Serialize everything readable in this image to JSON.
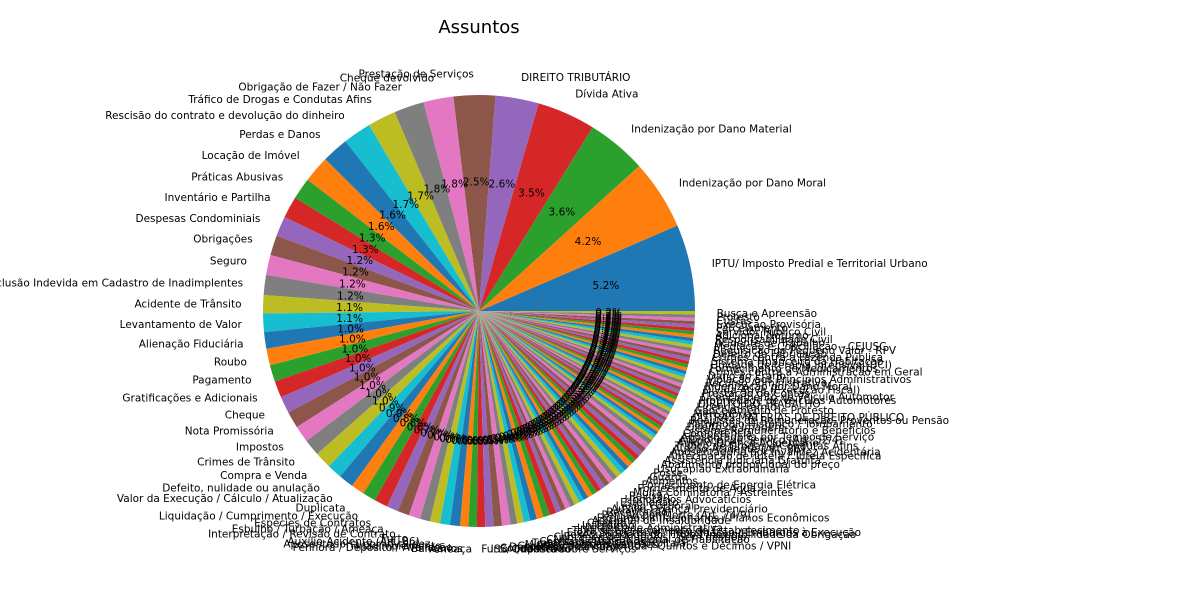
{
  "chart_data": {
    "type": "pie",
    "title": "Assuntos",
    "start_angle_deg": 0,
    "direction": "counterclockwise",
    "palette": [
      "#1f77b4",
      "#ff7f0e",
      "#2ca02c",
      "#d62728",
      "#9467bd",
      "#8c564b",
      "#e377c2",
      "#7f7f7f",
      "#bcbd22",
      "#17becf"
    ],
    "slices": [
      {
        "label": "IPTU/ Imposto Predial e Territorial Urbano",
        "value": 5.2
      },
      {
        "label": "Indenização por Dano Moral",
        "value": 4.2
      },
      {
        "label": "Indenização por Dano Material",
        "value": 3.6
      },
      {
        "label": "Dívida Ativa",
        "value": 3.5
      },
      {
        "label": "DIREITO TRIBUTÁRIO",
        "value": 2.6
      },
      {
        "label": "Prestação de Serviços",
        "value": 2.5
      },
      {
        "label": "Cheque devolvido",
        "value": 1.8
      },
      {
        "label": "Obrigação de Fazer / Não Fazer",
        "value": 1.8
      },
      {
        "label": "Tráfico de Drogas e Condutas Afins",
        "value": 1.7
      },
      {
        "label": "Rescisão do contrato e devolução do dinheiro",
        "value": 1.7
      },
      {
        "label": "Perdas e Danos",
        "value": 1.6
      },
      {
        "label": "Locação de Imóvel",
        "value": 1.6
      },
      {
        "label": "Práticas Abusivas",
        "value": 1.3
      },
      {
        "label": "Inventário e Partilha",
        "value": 1.3
      },
      {
        "label": "Despesas Condominiais",
        "value": 1.2
      },
      {
        "label": "Obrigações",
        "value": 1.2
      },
      {
        "label": "Seguro",
        "value": 1.2
      },
      {
        "label": "Inclusão Indevida em Cadastro de Inadimplentes",
        "value": 1.2
      },
      {
        "label": "Acidente de Trânsito",
        "value": 1.1
      },
      {
        "label": "Levantamento de Valor",
        "value": 1.1
      },
      {
        "label": "Alienação Fiduciária",
        "value": 1.0
      },
      {
        "label": "Roubo",
        "value": 1.0
      },
      {
        "label": "Pagamento",
        "value": 1.0
      },
      {
        "label": "Gratificações e Adicionais",
        "value": 1.0
      },
      {
        "label": "Cheque",
        "value": 1.0
      },
      {
        "label": "Nota Promissória",
        "value": 1.0
      },
      {
        "label": "Impostos",
        "value": 1.0
      },
      {
        "label": "Crimes de Trânsito",
        "value": 1.0
      },
      {
        "label": "Compra e Venda",
        "value": 1.0
      },
      {
        "label": "Defeito, nulidade ou anulação",
        "value": 0.9
      },
      {
        "label": "Valor da Execução / Cálculo / Atualização",
        "value": 0.9
      },
      {
        "label": "Duplicata",
        "value": 0.8
      },
      {
        "label": "Liquidação / Cumprimento / Execução",
        "value": 0.8
      },
      {
        "label": "Espécies de Contratos",
        "value": 0.8
      },
      {
        "label": "Esbulho / Turbação / Ameaça",
        "value": 0.7
      },
      {
        "label": "Interpretação / Revisão de Contrato",
        "value": 0.7
      },
      {
        "label": "Furto",
        "value": 0.7
      },
      {
        "label": "Auxílio-Acidente (Art. 86)",
        "value": 0.6
      },
      {
        "label": "Aposentadoria por Invalidez",
        "value": 0.6
      },
      {
        "label": "Inadimplemento",
        "value": 0.6
      },
      {
        "label": "Penhora / Depósito / Avaliação",
        "value": 0.6
      },
      {
        "label": "Bancários",
        "value": 0.5
      },
      {
        "label": "Ameaça",
        "value": 0.5
      },
      {
        "label": "Furto Qualificado",
        "value": 0.5
      },
      {
        "label": "ISS/ Imposto sobre Serviços",
        "value": 0.5
      },
      {
        "label": "Condomínio",
        "value": 0.5
      },
      {
        "label": "Descontos Indevidos",
        "value": 0.5
      },
      {
        "label": "Gratificação Incorporada / Quintos e Décimos / VPNI",
        "value": 0.4
      },
      {
        "label": "Multas e demais Sanções",
        "value": 0.4
      },
      {
        "label": "Tratamento médico-hospitalar",
        "value": 0.4
      },
      {
        "label": "Contratos Bancários",
        "value": 0.4
      },
      {
        "label": "CNH - Carteira Nacional de Habilitação",
        "value": 0.4
      },
      {
        "label": "Cobrança de Aluguéis - Sem despejo",
        "value": 0.4
      },
      {
        "label": "Inexequibilidade do Título / Inexigibilidade da Obrigação",
        "value": 0.4
      },
      {
        "label": "Efeito Suspensivo / Impugnação / Embargos à Execução",
        "value": 0.3
      },
      {
        "label": "Taxa de Licenciamento de Estabelecimento",
        "value": 0.3
      },
      {
        "label": "Improbidade Administrativa",
        "value": 0.3
      },
      {
        "label": "Interdição",
        "value": 0.3
      },
      {
        "label": "Citação",
        "value": 0.3
      },
      {
        "label": "Adicional de Insalubridade",
        "value": 0.3
      },
      {
        "label": "Expurgos Inflacionários / Planos Econômicos",
        "value": 0.3
      },
      {
        "label": "Pensão por Morte (Art. 74/9)",
        "value": 0.3
      },
      {
        "label": "Receptação",
        "value": 0.3
      },
      {
        "label": "Auxílio-Doença Previdenciário",
        "value": 0.3
      },
      {
        "label": "Lesão Corporal",
        "value": 0.3
      },
      {
        "label": "Estelionato",
        "value": 0.3
      },
      {
        "label": "Honorários Advocatícios",
        "value": 0.3
      },
      {
        "label": "Revisão",
        "value": 0.3
      },
      {
        "label": "Multa Cominatória / Astreintes",
        "value": 0.3
      },
      {
        "label": "Fornecimento de Água",
        "value": 0.3
      },
      {
        "label": "Fornecimento de Energia Elétrica",
        "value": 0.3
      },
      {
        "label": "Alimentos",
        "value": 0.3
      },
      {
        "label": "Guarda",
        "value": 0.3
      },
      {
        "label": "Posse",
        "value": 0.3
      },
      {
        "label": "Usucapião Extraordinária",
        "value": 0.3
      },
      {
        "label": "Abatimento proporcional do preço",
        "value": 0.3
      },
      {
        "label": "Assistência Judiciária Gratuita",
        "value": 0.3
      },
      {
        "label": "Antecipação de Tutela / Tutela Específica",
        "value": 0.3
      },
      {
        "label": "Aposentadoria por Invalidez Acidentária",
        "value": 0.2
      },
      {
        "label": "Auxílio-Acidente (Art. 86)",
        "value": 0.2
      },
      {
        "label": "Tráfico de Drogas e Condutas Afins",
        "value": 0.2
      },
      {
        "label": "Auxílio-Doença Acidentário",
        "value": 0.2
      },
      {
        "label": "Adicional de Serviço (Art. 52/4)",
        "value": 0.2
      },
      {
        "label": "Aposentadoria por Tempo de Serviço",
        "value": 0.2
      },
      {
        "label": "Competência",
        "value": 0.2
      },
      {
        "label": "Sistema Remuneratório e Benefícios",
        "value": 0.2
      },
      {
        "label": "Direito de Imagem",
        "value": 0.2
      },
      {
        "label": "Patrimônio Histórico / Tombamento",
        "value": 0.2
      },
      {
        "label": "Reajustes de Remuneração, Proventos ou Pensão",
        "value": 0.2
      },
      {
        "label": "OUTRAS MATÉRIAS DE DIREITO PÚBLICO",
        "value": 0.2
      },
      {
        "label": "Mercadorias",
        "value": 0.2
      },
      {
        "label": "Cancelamento de Protesto",
        "value": 0.2
      },
      {
        "label": "Licença-Prêmio",
        "value": 0.2
      },
      {
        "label": "DIREITO DO TRABALHO",
        "value": 0.2
      },
      {
        "label": "Propriedade de Veículos Automotores",
        "value": 0.2
      },
      {
        "label": "Licenciamento de Veículo Automotor",
        "value": 0.2
      },
      {
        "label": "Prestação de Contas",
        "value": 0.2
      },
      {
        "label": "Dívida Ativa (Execução Fiscal)",
        "value": 0.2
      },
      {
        "label": "Indenização por Dano Moral",
        "value": 0.2
      },
      {
        "label": "Recurso Administrativo",
        "value": 0.2
      },
      {
        "label": "Violação aos Princípios Administrativos",
        "value": 0.2
      },
      {
        "label": "Dano ao Erário",
        "value": 0.2
      },
      {
        "label": "Crimes contra a Administração em Geral",
        "value": 0.2
      },
      {
        "label": "Fornecimento de Medicamentos",
        "value": 0.2
      },
      {
        "label": "Unidade de terapia intensiva (UCI)",
        "value": 0.2
      },
      {
        "label": "Sistema Financeiro da Habitação",
        "value": 0.2
      },
      {
        "label": "Crimes contra a Fazenda Pública",
        "value": 0.2
      },
      {
        "label": "Defeito de Fabricação",
        "value": 0.2
      },
      {
        "label": "Requisição de Pequeno Valor - RPV",
        "value": 0.2
      },
      {
        "label": "Mediação e Conciliação - CEJUSC",
        "value": 0.2
      },
      {
        "label": "Acidente de Trabalho",
        "value": 0.2
      },
      {
        "label": "Responsabilidade Civil",
        "value": 0.2
      },
      {
        "label": "Adicional Noturno",
        "value": 0.2
      },
      {
        "label": "Servidor Público Civil",
        "value": 0.2
      },
      {
        "label": "Parcelamento",
        "value": 0.2
      },
      {
        "label": "Execução Provisória",
        "value": 0.2
      },
      {
        "label": "Custas",
        "value": 0.2
      },
      {
        "label": "Protesto",
        "value": 0.2
      },
      {
        "label": "Busca e Apreensão",
        "value": 0.2
      }
    ]
  }
}
